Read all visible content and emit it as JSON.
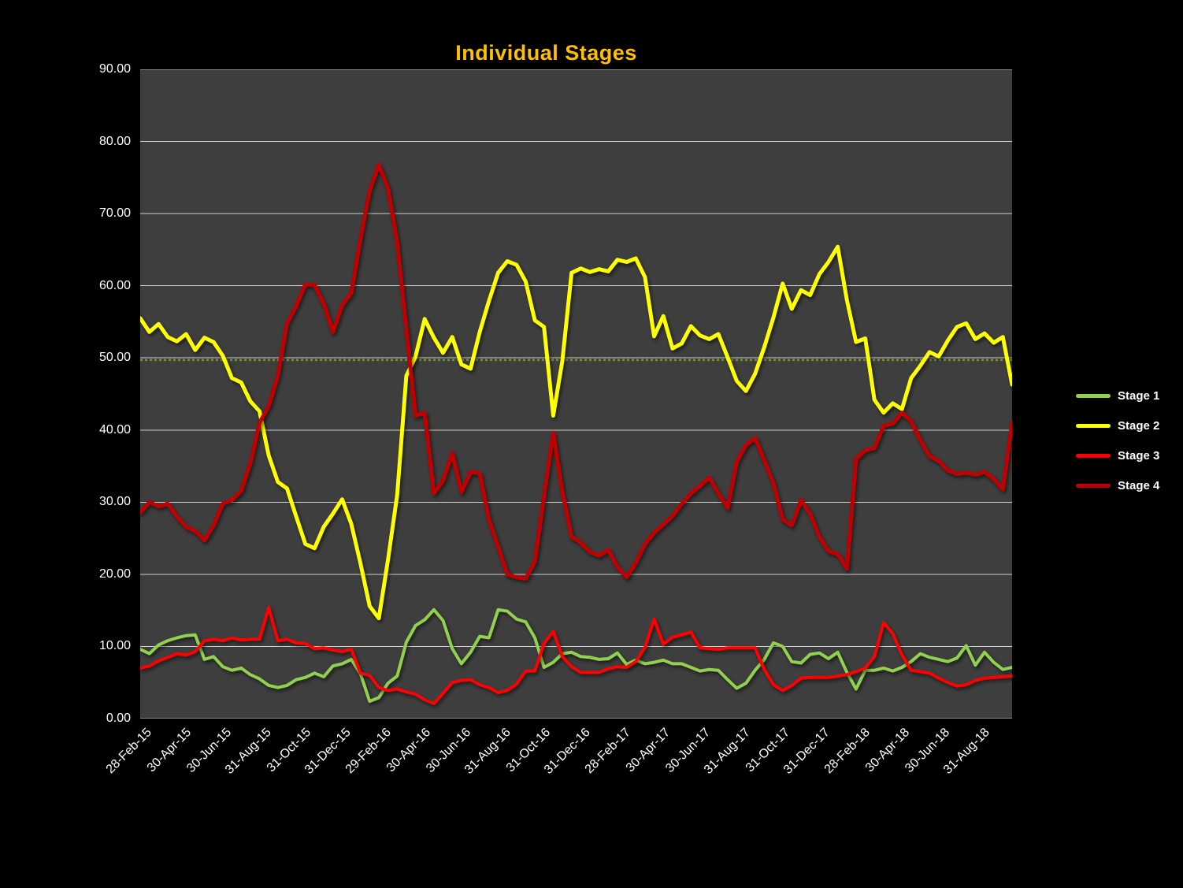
{
  "title": "Individual Stages",
  "colors": {
    "page_background": "#000000",
    "plot_background": "#3E3E3E",
    "gridline": "#CFCFCF",
    "title_text": "#FFC000",
    "axis_text": "#FFFFFF",
    "reference_line": "#77933C"
  },
  "legend": {
    "position": "right",
    "items": [
      {
        "label": "Stage 1",
        "color": "#92D050"
      },
      {
        "label": "Stage 2",
        "color": "#FFFF00"
      },
      {
        "label": "Stage 3",
        "color": "#FF0000"
      },
      {
        "label": "Stage 4",
        "color": "#C00000"
      }
    ]
  },
  "chart_data": {
    "type": "line",
    "title": "Individual Stages",
    "xlabel": "",
    "ylabel": "",
    "ylim": [
      0,
      90
    ],
    "grid": true,
    "y_tick_labels": [
      "0.00",
      "10.00",
      "20.00",
      "30.00",
      "40.00",
      "50.00",
      "60.00",
      "70.00",
      "80.00",
      "90.00"
    ],
    "x_tick_labels": [
      "28-Feb-15",
      "30-Apr-15",
      "30-Jun-15",
      "31-Aug-15",
      "31-Oct-15",
      "31-Dec-15",
      "29-Feb-16",
      "30-Apr-16",
      "30-Jun-16",
      "31-Aug-16",
      "31-Oct-16",
      "31-Dec-16",
      "28-Feb-17",
      "30-Apr-17",
      "30-Jun-17",
      "31-Aug-17",
      "31-Oct-17",
      "31-Dec-17",
      "28-Feb-18",
      "30-Apr-18",
      "30-Jun-18",
      "31-Aug-18"
    ],
    "reference_line": {
      "value": 49.7,
      "style": "dotted",
      "color": "#77933C"
    },
    "series": [
      {
        "name": "Stage 1",
        "color": "#92D050",
        "width": 4,
        "values": [
          9.6,
          9.0,
          10.2,
          10.8,
          11.2,
          11.5,
          11.6,
          8.2,
          8.6,
          7.2,
          6.7,
          7.0,
          6.1,
          5.5,
          4.6,
          4.3,
          4.6,
          5.4,
          5.7,
          6.3,
          5.8,
          7.3,
          7.6,
          8.2,
          6.2,
          2.4,
          2.9,
          4.9,
          5.9,
          10.6,
          12.9,
          13.7,
          15.1,
          13.6,
          9.7,
          7.6,
          9.2,
          11.4,
          11.2,
          15.1,
          14.9,
          13.8,
          13.4,
          11.2,
          7.1,
          7.8,
          9.0,
          9.2,
          8.6,
          8.5,
          8.2,
          8.3,
          9.1,
          7.5,
          8.1,
          7.6,
          7.8,
          8.1,
          7.6,
          7.6,
          7.1,
          6.6,
          6.8,
          6.7,
          5.4,
          4.2,
          4.9,
          6.7,
          8.2,
          10.5,
          10.0,
          7.9,
          7.7,
          8.9,
          9.1,
          8.3,
          9.2,
          6.4,
          4.1,
          6.7,
          6.7,
          7.0,
          6.6,
          7.1,
          7.9,
          9.0,
          8.5,
          8.2,
          7.9,
          8.4,
          10.1,
          7.4,
          9.2,
          7.8,
          6.8,
          7.1
        ]
      },
      {
        "name": "Stage 2",
        "color": "#FFFF00",
        "width": 5,
        "values": [
          55.5,
          53.6,
          54.7,
          52.9,
          52.3,
          53.3,
          51.1,
          52.8,
          52.2,
          50.3,
          47.2,
          46.6,
          44.0,
          42.6,
          36.5,
          32.8,
          31.9,
          28.0,
          24.2,
          23.6,
          26.6,
          28.4,
          30.4,
          27.0,
          21.5,
          15.6,
          13.9,
          22.0,
          31.0,
          47.5,
          50.2,
          55.4,
          52.8,
          50.7,
          52.9,
          49.1,
          48.5,
          53.6,
          57.9,
          61.8,
          63.4,
          62.9,
          60.6,
          55.2,
          54.3,
          42.0,
          49.6,
          61.8,
          62.4,
          61.9,
          62.3,
          62.0,
          63.6,
          63.3,
          63.8,
          61.2,
          53.0,
          55.8,
          51.3,
          52.0,
          54.4,
          53.1,
          52.6,
          53.3,
          50.1,
          46.8,
          45.4,
          47.8,
          51.5,
          55.6,
          60.3,
          56.8,
          59.4,
          58.7,
          61.6,
          63.3,
          65.4,
          58.0,
          52.2,
          52.7,
          44.2,
          42.4,
          43.7,
          42.9,
          47.2,
          48.9,
          50.8,
          50.2,
          52.4,
          54.3,
          54.8,
          52.6,
          53.4,
          52.1,
          52.9,
          46.3
        ]
      },
      {
        "name": "Stage 3",
        "color": "#FF0000",
        "width": 4,
        "values": [
          7.0,
          7.3,
          8.0,
          8.5,
          9.0,
          8.8,
          9.3,
          10.8,
          11.0,
          10.8,
          11.2,
          10.9,
          11.0,
          11.0,
          15.4,
          10.8,
          11.0,
          10.5,
          10.4,
          9.7,
          9.8,
          9.5,
          9.3,
          9.6,
          6.3,
          6.0,
          4.3,
          3.9,
          4.1,
          3.7,
          3.4,
          2.6,
          2.1,
          3.5,
          5.0,
          5.3,
          5.4,
          4.7,
          4.3,
          3.6,
          3.9,
          4.8,
          6.6,
          6.6,
          10.4,
          12.1,
          8.6,
          7.2,
          6.4,
          6.4,
          6.4,
          6.9,
          7.2,
          7.1,
          7.9,
          9.9,
          13.8,
          10.3,
          11.3,
          11.6,
          12.0,
          9.8,
          9.7,
          9.6,
          9.8,
          9.8,
          9.8,
          9.8,
          6.8,
          4.7,
          3.9,
          4.6,
          5.6,
          5.7,
          5.7,
          5.7,
          5.9,
          6.1,
          6.5,
          7.0,
          8.6,
          13.3,
          11.8,
          8.8,
          6.7,
          6.5,
          6.3,
          5.6,
          5.0,
          4.5,
          4.7,
          5.3,
          5.6,
          5.7,
          5.8,
          5.9
        ]
      },
      {
        "name": "Stage 4",
        "color": "#C00000",
        "width": 5,
        "values": [
          28.6,
          30.0,
          29.4,
          29.8,
          28.0,
          26.6,
          26.0,
          24.7,
          26.8,
          29.8,
          30.3,
          31.6,
          35.4,
          41.0,
          43.3,
          47.6,
          54.8,
          57.2,
          60.2,
          60.1,
          57.5,
          53.6,
          57.3,
          59.0,
          66.5,
          73.2,
          76.8,
          73.5,
          66.0,
          54.0,
          42.0,
          42.4,
          31.2,
          33.0,
          36.8,
          31.4,
          34.2,
          34.0,
          27.6,
          23.8,
          20.0,
          19.6,
          19.4,
          21.8,
          30.8,
          39.6,
          31.4,
          25.2,
          24.4,
          23.1,
          22.6,
          23.4,
          21.0,
          19.6,
          21.6,
          24.2,
          25.8,
          26.9,
          28.1,
          29.8,
          31.2,
          32.3,
          33.4,
          31.2,
          29.2,
          35.6,
          37.9,
          38.9,
          35.8,
          32.6,
          27.6,
          26.8,
          30.3,
          28.4,
          25.2,
          23.2,
          22.8,
          20.8,
          36.0,
          37.2,
          37.5,
          40.6,
          40.9,
          42.4,
          41.2,
          38.6,
          36.4,
          35.7,
          34.4,
          33.9,
          34.1,
          33.8,
          34.2,
          33.2,
          31.8,
          41.0
        ]
      }
    ],
    "legend_entries": [
      "Stage 1",
      "Stage 2",
      "Stage 3",
      "Stage 4"
    ]
  }
}
